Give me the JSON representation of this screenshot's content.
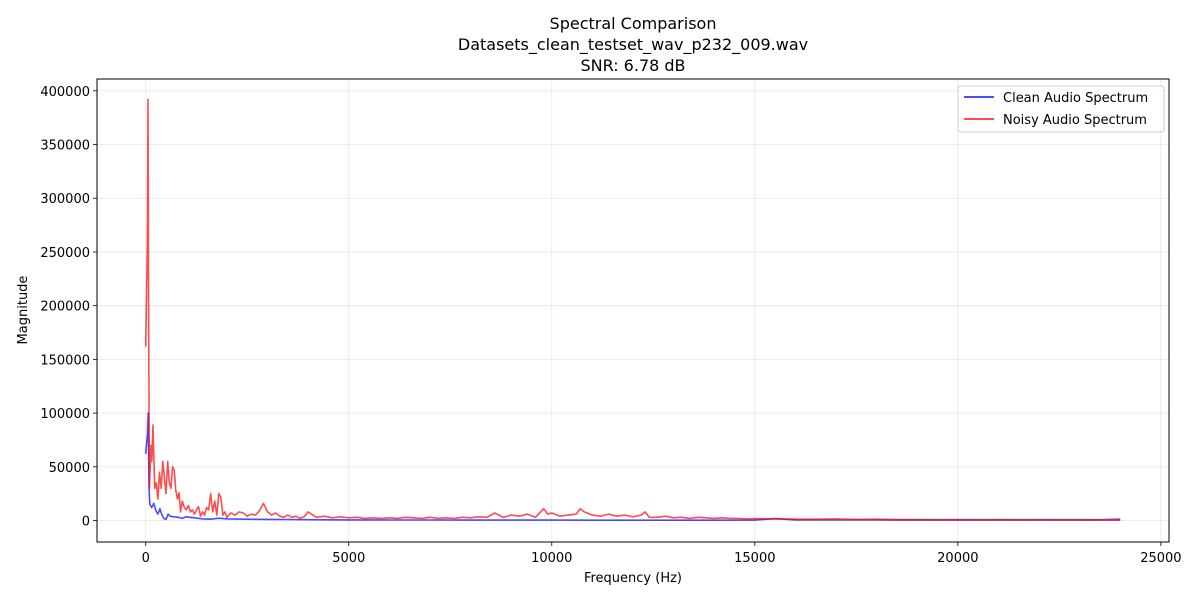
{
  "chart_data": {
    "type": "line",
    "title_lines": [
      "Spectral Comparison",
      "Datasets_clean_testset_wav_p232_009.wav",
      "SNR: 6.78 dB"
    ],
    "xlabel": "Frequency (Hz)",
    "ylabel": "Magnitude",
    "xlim": [
      -1200,
      25200
    ],
    "ylim": [
      -20000,
      411000
    ],
    "xticks": [
      0,
      5000,
      10000,
      15000,
      20000,
      25000
    ],
    "yticks": [
      0,
      50000,
      100000,
      150000,
      200000,
      250000,
      300000,
      350000,
      400000
    ],
    "grid": true,
    "legend_position": "top-right",
    "series": [
      {
        "name": "Clean Audio Spectrum",
        "color": "#0000ff",
        "points": [
          [
            0,
            62000
          ],
          [
            40,
            80000
          ],
          [
            60,
            100000
          ],
          [
            80,
            30000
          ],
          [
            100,
            15000
          ],
          [
            150,
            12000
          ],
          [
            200,
            16000
          ],
          [
            250,
            9000
          ],
          [
            300,
            6000
          ],
          [
            350,
            11000
          ],
          [
            400,
            5000
          ],
          [
            450,
            2000
          ],
          [
            500,
            1000
          ],
          [
            550,
            6000
          ],
          [
            600,
            4000
          ],
          [
            700,
            3500
          ],
          [
            800,
            3000
          ],
          [
            900,
            2000
          ],
          [
            1000,
            3500
          ],
          [
            1100,
            3000
          ],
          [
            1200,
            2500
          ],
          [
            1400,
            1500
          ],
          [
            1600,
            1200
          ],
          [
            1800,
            2200
          ],
          [
            2000,
            1500
          ],
          [
            2500,
            1200
          ],
          [
            3000,
            1000
          ],
          [
            3500,
            900
          ],
          [
            4000,
            800
          ],
          [
            5000,
            600
          ],
          [
            6000,
            500
          ],
          [
            7000,
            500
          ],
          [
            8000,
            400
          ],
          [
            9000,
            400
          ],
          [
            10000,
            350
          ],
          [
            11000,
            300
          ],
          [
            12000,
            300
          ],
          [
            13000,
            250
          ],
          [
            14000,
            300
          ],
          [
            15000,
            400
          ],
          [
            15500,
            1800
          ],
          [
            16000,
            600
          ],
          [
            17000,
            500
          ],
          [
            18000,
            500
          ],
          [
            19000,
            400
          ],
          [
            20000,
            400
          ],
          [
            21000,
            400
          ],
          [
            22000,
            400
          ],
          [
            23000,
            400
          ],
          [
            24000,
            400
          ]
        ]
      },
      {
        "name": "Noisy Audio Spectrum",
        "color": "#ff0000",
        "points": [
          [
            0,
            162000
          ],
          [
            40,
            260000
          ],
          [
            55,
            392000
          ],
          [
            70,
            200000
          ],
          [
            90,
            30000
          ],
          [
            110,
            50000
          ],
          [
            130,
            70000
          ],
          [
            150,
            55000
          ],
          [
            180,
            89000
          ],
          [
            220,
            30000
          ],
          [
            260,
            35000
          ],
          [
            300,
            20000
          ],
          [
            340,
            45000
          ],
          [
            380,
            30000
          ],
          [
            420,
            55000
          ],
          [
            460,
            40000
          ],
          [
            500,
            25000
          ],
          [
            540,
            55000
          ],
          [
            580,
            35000
          ],
          [
            620,
            30000
          ],
          [
            660,
            50000
          ],
          [
            700,
            47000
          ],
          [
            740,
            28000
          ],
          [
            780,
            20000
          ],
          [
            820,
            26000
          ],
          [
            860,
            8000
          ],
          [
            900,
            18000
          ],
          [
            950,
            12000
          ],
          [
            1000,
            10000
          ],
          [
            1050,
            14000
          ],
          [
            1100,
            8000
          ],
          [
            1150,
            10000
          ],
          [
            1200,
            6000
          ],
          [
            1250,
            10000
          ],
          [
            1300,
            13000
          ],
          [
            1350,
            4000
          ],
          [
            1400,
            8000
          ],
          [
            1450,
            5000
          ],
          [
            1500,
            12000
          ],
          [
            1550,
            10000
          ],
          [
            1600,
            25000
          ],
          [
            1650,
            8000
          ],
          [
            1700,
            18000
          ],
          [
            1750,
            5000
          ],
          [
            1800,
            25000
          ],
          [
            1850,
            22000
          ],
          [
            1900,
            5000
          ],
          [
            1950,
            8000
          ],
          [
            2000,
            3000
          ],
          [
            2100,
            7000
          ],
          [
            2200,
            5000
          ],
          [
            2300,
            8000
          ],
          [
            2400,
            7000
          ],
          [
            2500,
            4000
          ],
          [
            2600,
            6000
          ],
          [
            2700,
            5000
          ],
          [
            2800,
            9000
          ],
          [
            2900,
            16000
          ],
          [
            3000,
            8000
          ],
          [
            3100,
            5000
          ],
          [
            3200,
            7000
          ],
          [
            3300,
            4000
          ],
          [
            3400,
            3000
          ],
          [
            3500,
            5000
          ],
          [
            3600,
            3000
          ],
          [
            3700,
            4000
          ],
          [
            3800,
            2000
          ],
          [
            3900,
            3500
          ],
          [
            4000,
            8000
          ],
          [
            4200,
            3000
          ],
          [
            4400,
            4000
          ],
          [
            4600,
            2500
          ],
          [
            4800,
            3500
          ],
          [
            5000,
            2500
          ],
          [
            5200,
            3000
          ],
          [
            5400,
            2000
          ],
          [
            5600,
            2500
          ],
          [
            5800,
            2000
          ],
          [
            6000,
            2500
          ],
          [
            6200,
            2000
          ],
          [
            6400,
            3000
          ],
          [
            6600,
            2500
          ],
          [
            6800,
            2000
          ],
          [
            7000,
            3000
          ],
          [
            7200,
            2000
          ],
          [
            7400,
            2500
          ],
          [
            7600,
            2000
          ],
          [
            7800,
            3000
          ],
          [
            8000,
            2500
          ],
          [
            8200,
            3500
          ],
          [
            8400,
            3000
          ],
          [
            8600,
            7000
          ],
          [
            8800,
            3000
          ],
          [
            9000,
            5000
          ],
          [
            9200,
            4000
          ],
          [
            9400,
            6000
          ],
          [
            9600,
            3000
          ],
          [
            9800,
            11000
          ],
          [
            9900,
            6000
          ],
          [
            10000,
            7000
          ],
          [
            10200,
            4000
          ],
          [
            10400,
            5000
          ],
          [
            10600,
            6000
          ],
          [
            10700,
            11000
          ],
          [
            10800,
            8000
          ],
          [
            11000,
            5000
          ],
          [
            11200,
            4000
          ],
          [
            11400,
            6000
          ],
          [
            11600,
            4000
          ],
          [
            11800,
            5000
          ],
          [
            12000,
            3500
          ],
          [
            12200,
            5000
          ],
          [
            12300,
            8000
          ],
          [
            12400,
            3000
          ],
          [
            12600,
            3000
          ],
          [
            12800,
            4000
          ],
          [
            13000,
            2500
          ],
          [
            13200,
            3000
          ],
          [
            13400,
            2000
          ],
          [
            13600,
            3000
          ],
          [
            13800,
            2500
          ],
          [
            14000,
            2000
          ],
          [
            14200,
            2500
          ],
          [
            14400,
            2000
          ],
          [
            14600,
            2000
          ],
          [
            14800,
            1500
          ],
          [
            15000,
            1800
          ],
          [
            15300,
            1500
          ],
          [
            15600,
            1500
          ],
          [
            16000,
            1200
          ],
          [
            16500,
            1200
          ],
          [
            17000,
            1500
          ],
          [
            17500,
            1000
          ],
          [
            18000,
            1200
          ],
          [
            18500,
            900
          ],
          [
            19000,
            900
          ],
          [
            19500,
            800
          ],
          [
            20000,
            900
          ],
          [
            20500,
            800
          ],
          [
            21000,
            900
          ],
          [
            21500,
            800
          ],
          [
            22000,
            900
          ],
          [
            22500,
            800
          ],
          [
            23000,
            800
          ],
          [
            23500,
            700
          ],
          [
            24000,
            1500
          ]
        ]
      }
    ]
  }
}
